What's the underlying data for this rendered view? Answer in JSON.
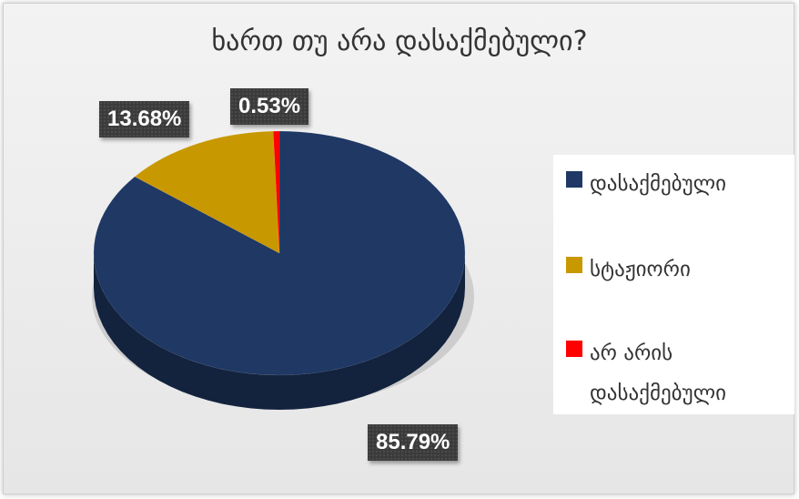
{
  "chart_data": {
    "type": "pie",
    "title": "ხართ თუ არა დასაქმებული?",
    "slices": [
      {
        "label": "დასაქმებული",
        "value": 85.79,
        "display": "85.79%",
        "color": "#1f3864"
      },
      {
        "label": "სტაჟიორი",
        "value": 13.68,
        "display": "13.68%",
        "color": "#c89800"
      },
      {
        "label": "არ  არის დასაქმებული",
        "value": 0.53,
        "display": "0.53%",
        "color": "#ff0000"
      }
    ],
    "legend_position": "right",
    "style": "3d"
  }
}
